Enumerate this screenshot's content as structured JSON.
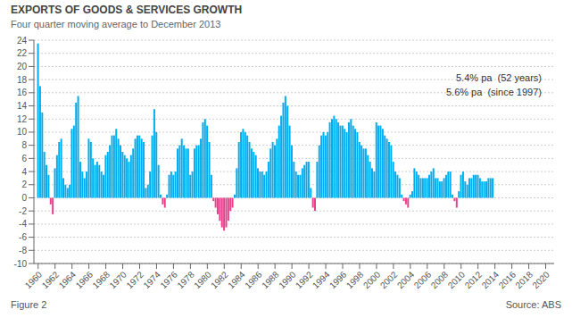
{
  "chart_data": {
    "type": "bar",
    "title": "EXPORTS OF GOODS & SERVICES GROWTH",
    "subtitle": "Four quarter moving average to December 2013",
    "annotations": [
      "5.4% pa  (52 years)",
      "5.6% pa  (since 1997)"
    ],
    "figure_label": "Figure 2",
    "source_label": "Source: ABS",
    "xlim": [
      1959.5,
      2021.0
    ],
    "xticks": [
      1960,
      1962,
      1964,
      1966,
      1968,
      1970,
      1972,
      1974,
      1976,
      1978,
      1980,
      1982,
      1984,
      1986,
      1988,
      1990,
      1992,
      1994,
      1996,
      1998,
      2000,
      2002,
      2004,
      2006,
      2008,
      2010,
      2012,
      2014,
      2016,
      2018,
      2020
    ],
    "ylim": [
      -10,
      24
    ],
    "yticks": [
      -10,
      -8,
      -6,
      -4,
      -2,
      0,
      2,
      4,
      6,
      8,
      10,
      12,
      14,
      16,
      18,
      20,
      22,
      24
    ],
    "grid": true,
    "x": [
      1960.0,
      1960.25,
      1960.5,
      1960.75,
      1961.0,
      1961.25,
      1961.5,
      1961.75,
      1962.0,
      1962.25,
      1962.5,
      1962.75,
      1963.0,
      1963.25,
      1963.5,
      1963.75,
      1964.0,
      1964.25,
      1964.5,
      1964.75,
      1965.0,
      1965.25,
      1965.5,
      1965.75,
      1966.0,
      1966.25,
      1966.5,
      1966.75,
      1967.0,
      1967.25,
      1967.5,
      1967.75,
      1968.0,
      1968.25,
      1968.5,
      1968.75,
      1969.0,
      1969.25,
      1969.5,
      1969.75,
      1970.0,
      1970.25,
      1970.5,
      1970.75,
      1971.0,
      1971.25,
      1971.5,
      1971.75,
      1972.0,
      1972.25,
      1972.5,
      1972.75,
      1973.0,
      1973.25,
      1973.5,
      1973.75,
      1974.0,
      1974.25,
      1974.5,
      1974.75,
      1975.0,
      1975.25,
      1975.5,
      1975.75,
      1976.0,
      1976.25,
      1976.5,
      1976.75,
      1977.0,
      1977.25,
      1977.5,
      1977.75,
      1978.0,
      1978.25,
      1978.5,
      1978.75,
      1979.0,
      1979.25,
      1979.5,
      1979.75,
      1980.0,
      1980.25,
      1980.5,
      1980.75,
      1981.0,
      1981.25,
      1981.5,
      1981.75,
      1982.0,
      1982.25,
      1982.5,
      1982.75,
      1983.0,
      1983.25,
      1983.5,
      1983.75,
      1984.0,
      1984.25,
      1984.5,
      1984.75,
      1985.0,
      1985.25,
      1985.5,
      1985.75,
      1986.0,
      1986.25,
      1986.5,
      1986.75,
      1987.0,
      1987.25,
      1987.5,
      1987.75,
      1988.0,
      1988.25,
      1988.5,
      1988.75,
      1989.0,
      1989.25,
      1989.5,
      1989.75,
      1990.0,
      1990.25,
      1990.5,
      1990.75,
      1991.0,
      1991.25,
      1991.5,
      1991.75,
      1992.0,
      1992.25,
      1992.5,
      1992.75,
      1993.0,
      1993.25,
      1993.5,
      1993.75,
      1994.0,
      1994.25,
      1994.5,
      1994.75,
      1995.0,
      1995.25,
      1995.5,
      1995.75,
      1996.0,
      1996.25,
      1996.5,
      1996.75,
      1997.0,
      1997.25,
      1997.5,
      1997.75,
      1998.0,
      1998.25,
      1998.5,
      1998.75,
      1999.0,
      1999.25,
      1999.5,
      1999.75,
      2000.0,
      2000.25,
      2000.5,
      2000.75,
      2001.0,
      2001.25,
      2001.5,
      2001.75,
      2002.0,
      2002.25,
      2002.5,
      2002.75,
      2003.0,
      2003.25,
      2003.5,
      2003.75,
      2004.0,
      2004.25,
      2004.5,
      2004.75,
      2005.0,
      2005.25,
      2005.5,
      2005.75,
      2006.0,
      2006.25,
      2006.5,
      2006.75,
      2007.0,
      2007.25,
      2007.5,
      2007.75,
      2008.0,
      2008.25,
      2008.5,
      2008.75,
      2009.0,
      2009.25,
      2009.5,
      2009.75,
      2010.0,
      2010.25,
      2010.5,
      2010.75,
      2011.0,
      2011.25,
      2011.5,
      2011.75,
      2012.0,
      2012.25,
      2012.5,
      2012.75,
      2013.0,
      2013.25,
      2013.5,
      2013.75
    ],
    "values": [
      23.5,
      17.0,
      13.0,
      7.0,
      5.0,
      3.5,
      -1.0,
      -2.5,
      4.5,
      6.5,
      8.5,
      9.0,
      3.0,
      2.0,
      1.5,
      2.0,
      10.5,
      11.0,
      14.5,
      15.5,
      5.5,
      4.0,
      3.0,
      4.0,
      9.0,
      8.5,
      6.0,
      5.0,
      5.5,
      5.0,
      4.0,
      3.5,
      6.5,
      7.0,
      8.0,
      9.5,
      9.5,
      10.5,
      9.0,
      8.0,
      7.0,
      6.5,
      6.0,
      5.5,
      6.5,
      7.5,
      9.0,
      9.5,
      9.5,
      9.0,
      8.5,
      1.5,
      2.0,
      4.0,
      9.5,
      13.5,
      10.0,
      5.0,
      0.5,
      -1.0,
      -1.5,
      0.5,
      3.5,
      4.0,
      3.5,
      4.0,
      7.5,
      8.0,
      9.0,
      8.0,
      7.5,
      7.5,
      3.5,
      4.0,
      7.5,
      8.0,
      8.0,
      9.0,
      11.5,
      12.0,
      11.0,
      8.5,
      3.5,
      -0.5,
      -1.5,
      -2.5,
      -3.5,
      -4.5,
      -5.0,
      -4.5,
      -3.5,
      -2.0,
      -1.5,
      0.5,
      4.5,
      8.5,
      10.0,
      10.5,
      10.0,
      9.5,
      8.5,
      7.5,
      7.0,
      6.5,
      4.5,
      4.0,
      4.0,
      3.5,
      4.0,
      5.5,
      7.5,
      8.5,
      8.0,
      9.0,
      11.0,
      12.5,
      14.5,
      15.5,
      14.0,
      11.0,
      8.0,
      5.5,
      4.0,
      3.5,
      3.5,
      4.5,
      5.0,
      5.5,
      5.5,
      1.5,
      -1.5,
      -2.0,
      5.5,
      8.0,
      9.5,
      10.0,
      9.5,
      10.0,
      11.5,
      12.0,
      12.5,
      12.0,
      11.5,
      11.0,
      11.0,
      10.5,
      10.0,
      11.5,
      12.0,
      11.0,
      10.5,
      10.0,
      8.5,
      8.0,
      7.5,
      7.5,
      6.5,
      5.5,
      4.5,
      4.0,
      11.5,
      11.0,
      11.0,
      10.5,
      9.5,
      9.0,
      8.5,
      8.0,
      5.5,
      4.0,
      3.5,
      3.0,
      0.5,
      -0.5,
      -1.0,
      -1.5,
      0.5,
      1.0,
      4.5,
      4.0,
      3.5,
      3.0,
      3.0,
      3.0,
      3.0,
      3.5,
      4.0,
      4.5,
      3.0,
      3.0,
      2.5,
      2.5,
      3.0,
      3.5,
      4.0,
      4.0,
      0.5,
      -0.5,
      -1.5,
      1.0,
      3.5,
      4.0,
      2.5,
      2.0,
      3.0,
      3.0,
      3.5,
      3.5,
      3.5,
      3.0,
      2.5,
      2.5,
      2.5,
      3.0,
      3.0,
      3.0
    ],
    "colors": [
      "#00AEEF",
      "#00AEEF",
      "#00AEEF",
      "#00AEEF",
      "#00AEEF",
      "#00AEEF",
      "#E8408A",
      "#E8408A",
      "#00AEEF",
      "#00AEEF",
      "#00AEEF",
      "#00AEEF",
      "#00AEEF",
      "#00AEEF",
      "#00AEEF",
      "#00AEEF",
      "#00AEEF",
      "#00AEEF",
      "#00AEEF",
      "#00AEEF",
      "#00AEEF",
      "#00AEEF",
      "#00AEEF",
      "#00AEEF",
      "#00AEEF",
      "#00AEEF",
      "#00AEEF",
      "#00AEEF",
      "#00AEEF",
      "#00AEEF",
      "#00AEEF",
      "#00AEEF",
      "#00AEEF",
      "#00AEEF",
      "#00AEEF",
      "#00AEEF",
      "#00AEEF",
      "#00AEEF",
      "#00AEEF",
      "#00AEEF",
      "#00AEEF",
      "#00AEEF",
      "#00AEEF",
      "#00AEEF",
      "#00AEEF",
      "#00AEEF",
      "#00AEEF",
      "#00AEEF",
      "#00AEEF",
      "#00AEEF",
      "#00AEEF",
      "#00AEEF",
      "#00AEEF",
      "#00AEEF",
      "#00AEEF",
      "#00AEEF",
      "#00AEEF",
      "#00AEEF",
      "#00AEEF",
      "#E8408A",
      "#E8408A",
      "#00AEEF",
      "#00AEEF",
      "#00AEEF",
      "#00AEEF",
      "#00AEEF",
      "#00AEEF",
      "#00AEEF",
      "#00AEEF",
      "#00AEEF",
      "#00AEEF",
      "#00AEEF",
      "#00AEEF",
      "#00AEEF",
      "#00AEEF",
      "#00AEEF",
      "#00AEEF",
      "#00AEEF",
      "#00AEEF",
      "#00AEEF",
      "#00AEEF",
      "#00AEEF",
      "#00AEEF",
      "#E8408A",
      "#E8408A",
      "#E8408A",
      "#E8408A",
      "#E8408A",
      "#E8408A",
      "#E8408A",
      "#E8408A",
      "#E8408A",
      "#E8408A",
      "#00AEEF",
      "#00AEEF",
      "#00AEEF",
      "#00AEEF",
      "#00AEEF",
      "#00AEEF",
      "#00AEEF",
      "#00AEEF",
      "#00AEEF",
      "#00AEEF",
      "#00AEEF",
      "#00AEEF",
      "#00AEEF",
      "#00AEEF",
      "#00AEEF",
      "#00AEEF",
      "#00AEEF",
      "#00AEEF",
      "#00AEEF",
      "#00AEEF",
      "#00AEEF",
      "#00AEEF",
      "#00AEEF",
      "#00AEEF",
      "#00AEEF",
      "#00AEEF",
      "#00AEEF",
      "#00AEEF",
      "#00AEEF",
      "#00AEEF",
      "#00AEEF",
      "#00AEEF",
      "#00AEEF",
      "#00AEEF",
      "#00AEEF",
      "#00AEEF",
      "#00AEEF",
      "#E8408A",
      "#E8408A",
      "#00AEEF",
      "#00AEEF",
      "#00AEEF",
      "#00AEEF",
      "#00AEEF",
      "#00AEEF",
      "#00AEEF",
      "#00AEEF",
      "#00AEEF",
      "#00AEEF",
      "#00AEEF",
      "#00AEEF",
      "#00AEEF",
      "#00AEEF",
      "#00AEEF",
      "#00AEEF",
      "#00AEEF",
      "#00AEEF",
      "#00AEEF",
      "#00AEEF",
      "#00AEEF",
      "#00AEEF",
      "#00AEEF",
      "#00AEEF",
      "#00AEEF",
      "#00AEEF",
      "#00AEEF",
      "#00AEEF",
      "#00AEEF",
      "#00AEEF",
      "#00AEEF",
      "#00AEEF",
      "#00AEEF",
      "#00AEEF",
      "#00AEEF",
      "#00AEEF",
      "#00AEEF",
      "#00AEEF",
      "#00AEEF",
      "#00AEEF",
      "#00AEEF",
      "#E8408A",
      "#E8408A",
      "#E8408A",
      "#00AEEF",
      "#00AEEF",
      "#00AEEF",
      "#00AEEF",
      "#00AEEF",
      "#00AEEF",
      "#00AEEF",
      "#00AEEF",
      "#00AEEF",
      "#00AEEF",
      "#00AEEF",
      "#00AEEF",
      "#00AEEF",
      "#00AEEF",
      "#00AEEF",
      "#00AEEF",
      "#00AEEF",
      "#00AEEF",
      "#00AEEF",
      "#00AEEF",
      "#00AEEF",
      "#E8408A",
      "#E8408A",
      "#00AEEF",
      "#00AEEF",
      "#00AEEF",
      "#00AEEF",
      "#00AEEF",
      "#00AEEF",
      "#00AEEF",
      "#00AEEF",
      "#00AEEF",
      "#00AEEF",
      "#00AEEF",
      "#00AEEF",
      "#00AEEF",
      "#00AEEF",
      "#00AEEF",
      "#00AEEF",
      "#00AEEF"
    ]
  }
}
